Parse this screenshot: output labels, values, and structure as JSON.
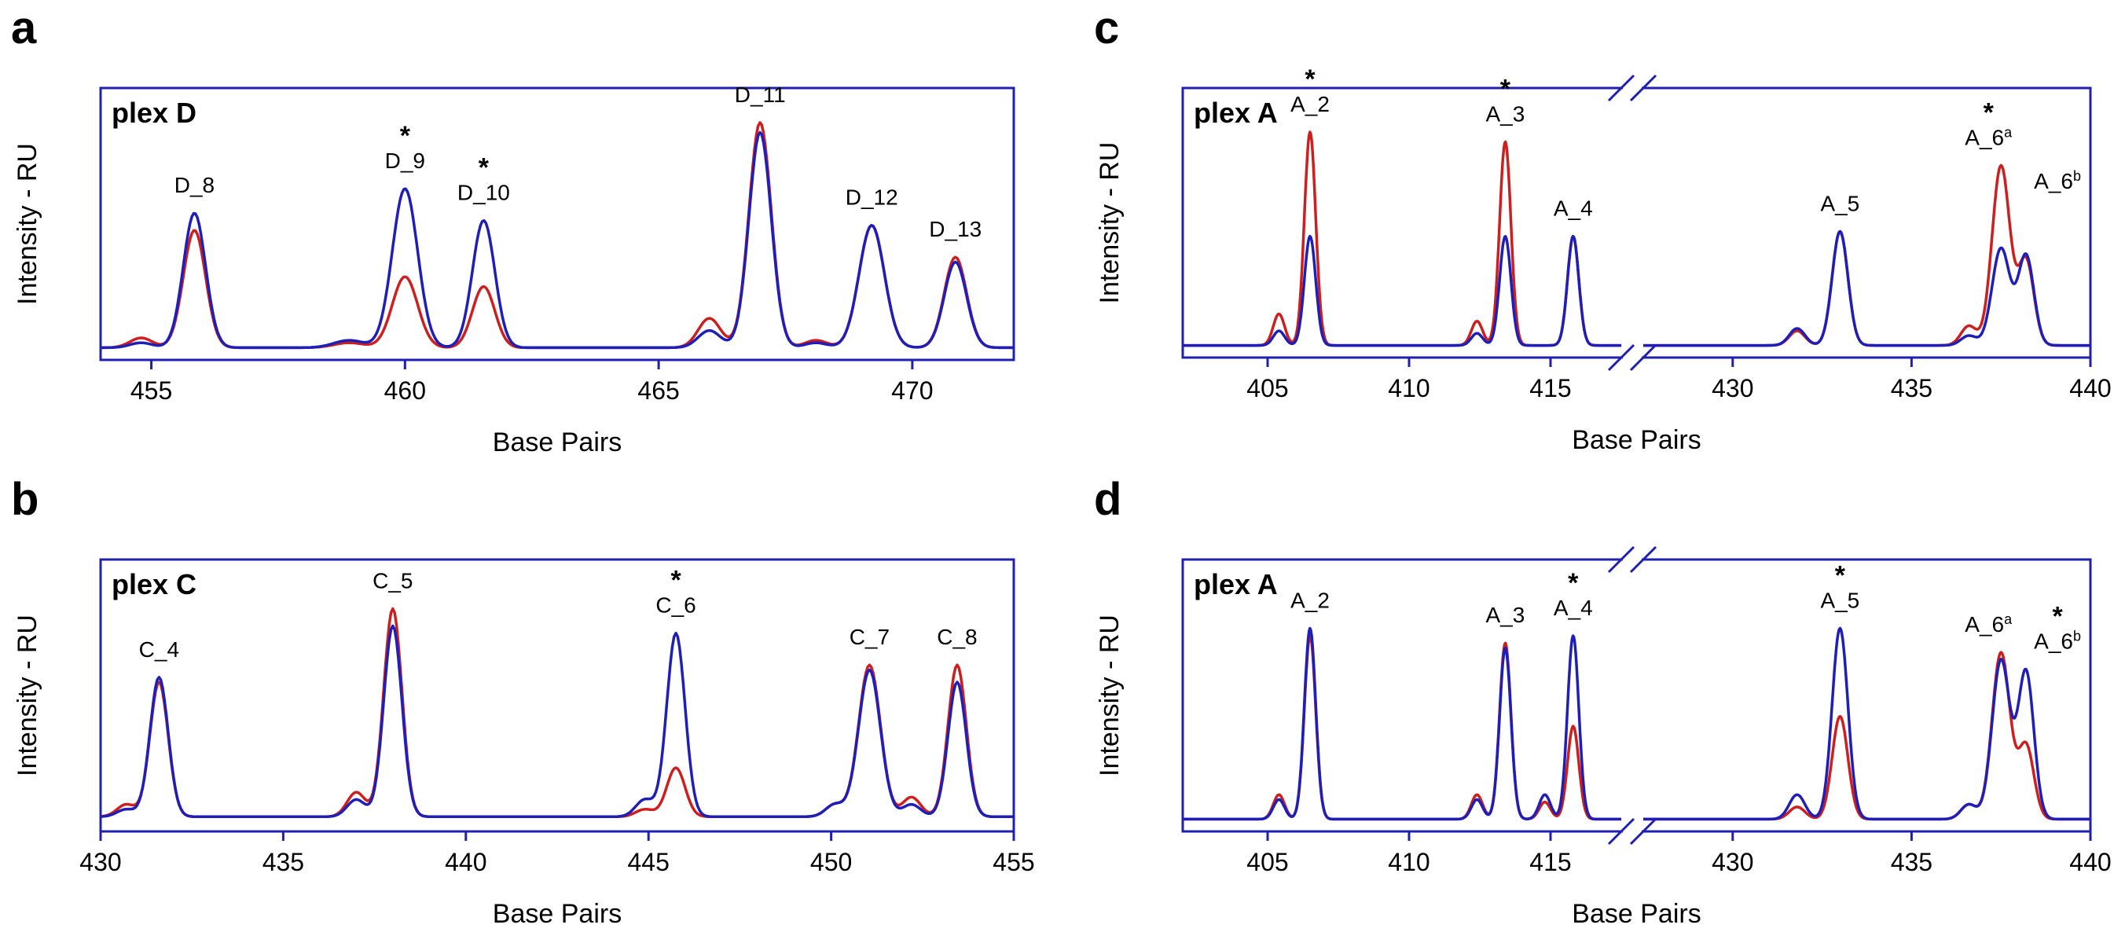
{
  "chart_data": [
    {
      "panel": "a",
      "type": "line",
      "plex_label": "plex D",
      "xlabel": "Base Pairs",
      "ylabel": "Intensity - RU",
      "xlim": [
        454,
        472
      ],
      "ylim": [
        0,
        1
      ],
      "x_ticks": [
        455,
        460,
        465,
        470
      ],
      "series_colors": [
        "#cc1f1f",
        "#1f1fb8"
      ],
      "baseline": 0.05,
      "peaks": [
        {
          "label": "D_8",
          "x": 455.85,
          "star": false,
          "red": 0.48,
          "blue": 0.55,
          "w": 0.22
        },
        {
          "label": "D_9",
          "x": 460.0,
          "star": true,
          "red": 0.29,
          "blue": 0.65,
          "w": 0.25
        },
        {
          "label": "D_10",
          "x": 461.55,
          "star": true,
          "red": 0.25,
          "blue": 0.52,
          "w": 0.22
        },
        {
          "label": "D_11",
          "x": 467.0,
          "star": false,
          "red": 0.92,
          "blue": 0.88,
          "w": 0.22
        },
        {
          "label": "D_12",
          "x": 469.2,
          "star": false,
          "red": 0.5,
          "blue": 0.5,
          "w": 0.25
        },
        {
          "label": "D_13",
          "x": 470.85,
          "star": false,
          "red": 0.37,
          "blue": 0.35,
          "w": 0.22
        }
      ],
      "minor_peaks": [
        {
          "x": 454.8,
          "red": 0.04,
          "blue": 0.02,
          "w": 0.22
        },
        {
          "x": 458.9,
          "red": 0.02,
          "blue": 0.03,
          "w": 0.3
        },
        {
          "x": 466.0,
          "red": 0.12,
          "blue": 0.07,
          "w": 0.22
        },
        {
          "x": 468.1,
          "red": 0.03,
          "blue": 0.02,
          "w": 0.22
        }
      ]
    },
    {
      "panel": "b",
      "type": "line",
      "plex_label": "plex C",
      "xlabel": "Base Pairs",
      "ylabel": "Intensity - RU",
      "xlim": [
        430,
        455
      ],
      "ylim": [
        0,
        1
      ],
      "x_ticks": [
        430,
        435,
        440,
        445,
        450,
        455
      ],
      "series_colors": [
        "#cc1f1f",
        "#1f1fb8"
      ],
      "baseline": 0.06,
      "peaks": [
        {
          "label": "C_4",
          "x": 431.6,
          "star": false,
          "red": 0.55,
          "blue": 0.57,
          "w": 0.25
        },
        {
          "label": "C_5",
          "x": 438.0,
          "star": false,
          "red": 0.85,
          "blue": 0.78,
          "w": 0.25
        },
        {
          "label": "C_6",
          "x": 445.75,
          "star": true,
          "red": 0.2,
          "blue": 0.75,
          "w": 0.25
        },
        {
          "label": "C_7",
          "x": 451.05,
          "star": false,
          "red": 0.62,
          "blue": 0.6,
          "w": 0.3
        },
        {
          "label": "C_8",
          "x": 453.45,
          "star": false,
          "red": 0.62,
          "blue": 0.55,
          "w": 0.25
        }
      ],
      "minor_peaks": [
        {
          "x": 430.7,
          "red": 0.05,
          "blue": 0.03,
          "w": 0.25
        },
        {
          "x": 437.0,
          "red": 0.1,
          "blue": 0.07,
          "w": 0.25
        },
        {
          "x": 444.9,
          "red": 0.03,
          "blue": 0.07,
          "w": 0.25
        },
        {
          "x": 450.1,
          "red": 0.05,
          "blue": 0.05,
          "w": 0.25
        },
        {
          "x": 452.2,
          "red": 0.08,
          "blue": 0.05,
          "w": 0.25
        }
      ]
    },
    {
      "panel": "c",
      "type": "line",
      "plex_label": "plex A",
      "xlabel": "Base Pairs",
      "ylabel": "Intensity - RU",
      "broken_axis": true,
      "segments": [
        {
          "xlim": [
            402,
            417.5
          ]
        },
        {
          "xlim": [
            427.5,
            440
          ]
        }
      ],
      "x_ticks": [
        405,
        410,
        415,
        430,
        435,
        440
      ],
      "ylim": [
        0,
        1
      ],
      "series_colors": [
        "#cc1f1f",
        "#1f1fb8"
      ],
      "baseline": 0.05,
      "peaks": [
        {
          "label": "A_2",
          "x": 406.5,
          "star": true,
          "red": 0.88,
          "blue": 0.45,
          "w": 0.2
        },
        {
          "label": "A_3",
          "x": 413.4,
          "star": true,
          "red": 0.84,
          "blue": 0.45,
          "w": 0.2
        },
        {
          "label": "A_4",
          "x": 415.8,
          "star": false,
          "red": 0.45,
          "blue": 0.45,
          "w": 0.2
        },
        {
          "label": "A_5",
          "x": 433.0,
          "star": false,
          "red": 0.47,
          "blue": 0.47,
          "w": 0.22
        },
        {
          "label": "A_6",
          "label_sup": "a",
          "x": 437.5,
          "star": true,
          "red": 0.74,
          "blue": 0.4,
          "w": 0.25
        },
        {
          "label": "A_6",
          "label_sup": "b",
          "x": 438.2,
          "star": false,
          "red": 0.35,
          "blue": 0.37,
          "w": 0.22
        }
      ],
      "minor_peaks": [
        {
          "x": 405.4,
          "red": 0.13,
          "blue": 0.06,
          "w": 0.2
        },
        {
          "x": 412.4,
          "red": 0.1,
          "blue": 0.05,
          "w": 0.2
        },
        {
          "x": 431.8,
          "red": 0.06,
          "blue": 0.07,
          "w": 0.22
        },
        {
          "x": 436.6,
          "red": 0.08,
          "blue": 0.04,
          "w": 0.22
        }
      ]
    },
    {
      "panel": "d",
      "type": "line",
      "plex_label": "plex A",
      "xlabel": "Base Pairs",
      "ylabel": "Intensity - RU",
      "broken_axis": true,
      "segments": [
        {
          "xlim": [
            402,
            417.5
          ]
        },
        {
          "xlim": [
            427.5,
            440
          ]
        }
      ],
      "x_ticks": [
        405,
        410,
        415,
        430,
        435,
        440
      ],
      "ylim": [
        0,
        1
      ],
      "series_colors": [
        "#cc1f1f",
        "#1f1fb8"
      ],
      "baseline": 0.05,
      "peaks": [
        {
          "label": "A_2",
          "x": 406.5,
          "star": false,
          "red": 0.75,
          "blue": 0.78,
          "w": 0.2
        },
        {
          "label": "A_3",
          "x": 413.4,
          "star": false,
          "red": 0.72,
          "blue": 0.7,
          "w": 0.2
        },
        {
          "label": "A_4",
          "x": 415.8,
          "star": true,
          "red": 0.38,
          "blue": 0.75,
          "w": 0.2
        },
        {
          "label": "A_5",
          "x": 433.0,
          "star": true,
          "red": 0.42,
          "blue": 0.78,
          "w": 0.22
        },
        {
          "label": "A_6",
          "label_sup": "a",
          "x": 437.5,
          "star": false,
          "red": 0.68,
          "blue": 0.65,
          "w": 0.25
        },
        {
          "label": "A_6",
          "label_sup": "b",
          "x": 438.2,
          "star": true,
          "red": 0.3,
          "blue": 0.6,
          "w": 0.22
        }
      ],
      "minor_peaks": [
        {
          "x": 405.4,
          "red": 0.1,
          "blue": 0.08,
          "w": 0.2
        },
        {
          "x": 412.4,
          "red": 0.1,
          "blue": 0.08,
          "w": 0.2
        },
        {
          "x": 414.8,
          "red": 0.07,
          "blue": 0.1,
          "w": 0.2
        },
        {
          "x": 431.8,
          "red": 0.05,
          "blue": 0.1,
          "w": 0.22
        },
        {
          "x": 436.6,
          "red": 0.06,
          "blue": 0.06,
          "w": 0.22
        }
      ]
    }
  ]
}
